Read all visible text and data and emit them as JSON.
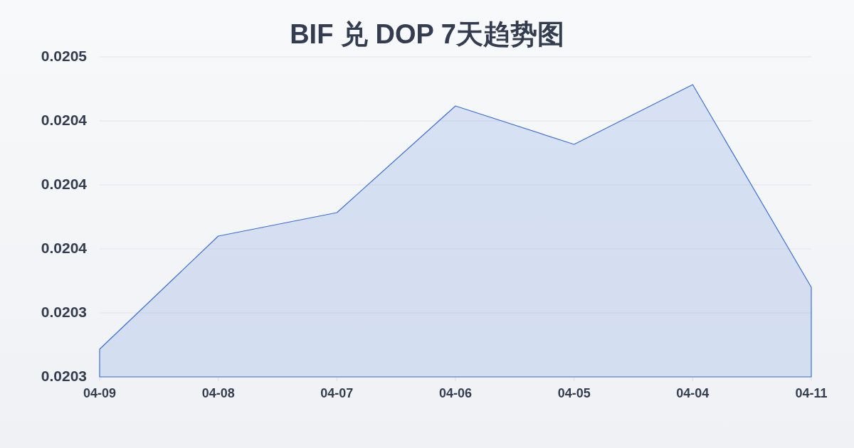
{
  "chart_data": {
    "type": "area",
    "title": "BIF 兑 DOP 7天趋势图",
    "categories": [
      "04-09",
      "04-08",
      "04-07",
      "04-06",
      "04-05",
      "04-04",
      "04-11"
    ],
    "series": [
      {
        "color": "#3b6fd4",
        "values": [
          0.020323,
          0.020376,
          0.020387,
          0.020437,
          0.020419,
          0.020447,
          0.020352
        ]
      }
    ],
    "ylim": [
      0.02031,
      0.02046
    ],
    "yticks": [
      {
        "value": 0.02031,
        "label": "0.0203"
      },
      {
        "value": 0.02034,
        "label": "0.0203"
      },
      {
        "value": 0.02037,
        "label": "0.0204"
      },
      {
        "value": 0.0204,
        "label": "0.0204"
      },
      {
        "value": 0.02043,
        "label": "0.0204"
      },
      {
        "value": 0.02046,
        "label": "0.0205"
      }
    ],
    "grid": "y"
  }
}
